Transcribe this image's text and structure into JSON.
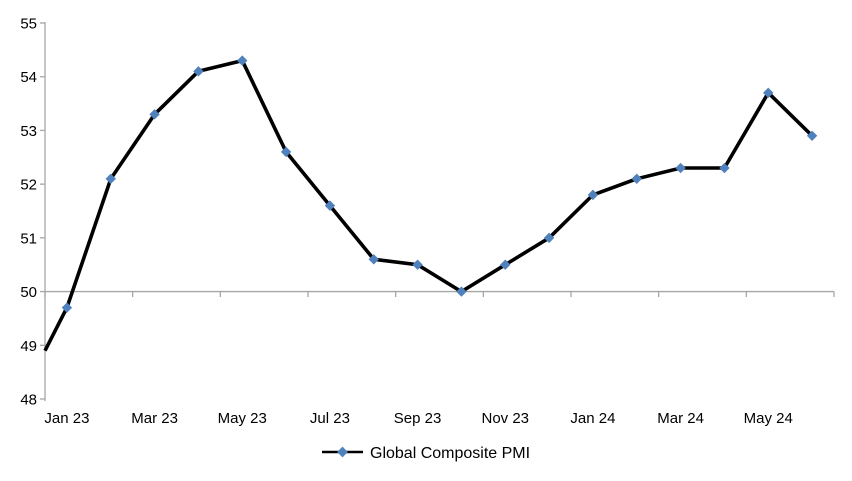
{
  "chart_data": {
    "type": "line",
    "title": "",
    "legend_label": "Global Composite PMI",
    "legend_position": "bottom-center",
    "categories": [
      "Jan 23",
      "Feb 23",
      "Mar 23",
      "Apr 23",
      "May 23",
      "Jun 23",
      "Jul 23",
      "Aug 23",
      "Sep 23",
      "Oct 23",
      "Nov 23",
      "Dec 23",
      "Jan 24",
      "Feb 24",
      "Mar 24",
      "Apr 24",
      "May 24",
      "Jun 24"
    ],
    "series": [
      {
        "name": "Global Composite PMI",
        "values": [
          49.7,
          52.1,
          53.3,
          54.1,
          54.3,
          52.6,
          51.6,
          50.6,
          50.5,
          50.0,
          50.5,
          51.0,
          51.8,
          52.1,
          52.3,
          52.3,
          53.7,
          52.9
        ],
        "left_edge_entry_value": 48.9,
        "line_color": "#000000",
        "marker": "diamond",
        "marker_color": "#4f81bd"
      }
    ],
    "x_axis": {
      "tick_labels": [
        "Jan 23",
        "Mar 23",
        "May 23",
        "Jul 23",
        "Sep 23",
        "Nov 23",
        "Jan 24",
        "Mar 24",
        "May 24"
      ],
      "tick_label_interval": 2,
      "axis_line_at_value": 50,
      "labels_position": "low"
    },
    "y_axis": {
      "min": 48,
      "max": 55,
      "step": 1,
      "tick_labels": [
        "48",
        "49",
        "50",
        "51",
        "52",
        "53",
        "54",
        "55"
      ]
    },
    "grid": "off",
    "axis_color": "#a6a6a6",
    "text_color": "#000000",
    "background": "#ffffff"
  }
}
